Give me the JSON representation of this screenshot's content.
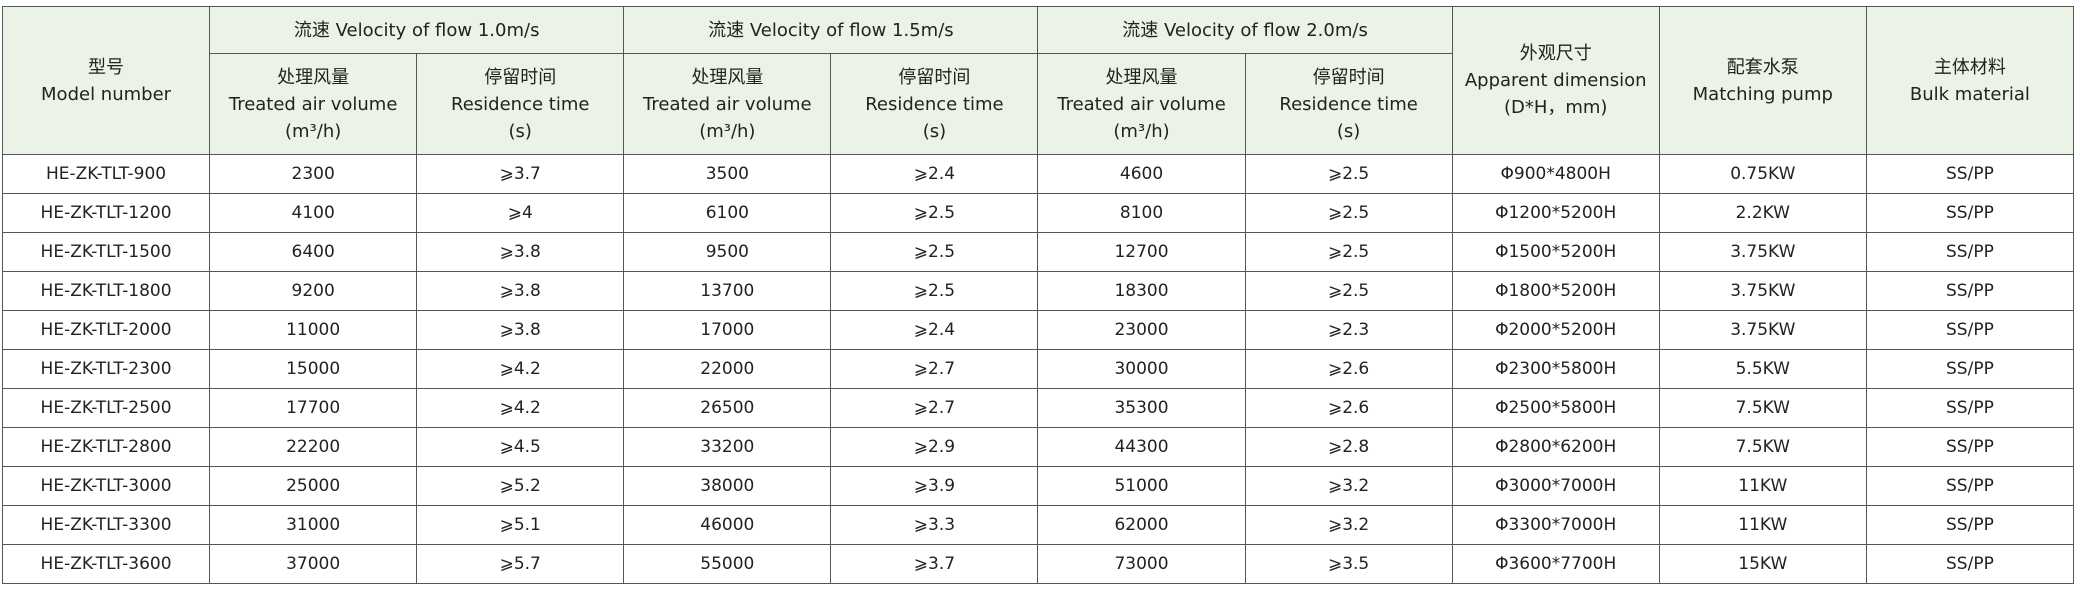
{
  "table": {
    "model_header": [
      "型号",
      "Model number"
    ],
    "velocity_groups": [
      {
        "title": "流速 Velocity of flow 1.0m/s",
        "columns": [
          [
            "处理风量",
            "Treated air volume",
            "(m³/h)"
          ],
          [
            "停留时间",
            "Residence time",
            "(s)"
          ]
        ]
      },
      {
        "title": "流速 Velocity of flow 1.5m/s",
        "columns": [
          [
            "处理风量",
            "Treated air volume",
            "(m³/h)"
          ],
          [
            "停留时间",
            "Residence time",
            "(s)"
          ]
        ]
      },
      {
        "title": "流速 Velocity of flow 2.0m/s",
        "columns": [
          [
            "处理风量",
            "Treated air volume",
            "(m³/h)"
          ],
          [
            "停留时间",
            "Residence time",
            "(s)"
          ]
        ]
      }
    ],
    "other_headers": [
      [
        "外观尺寸",
        "Apparent dimension",
        "(D*H，mm)"
      ],
      [
        "配套水泵",
        "Matching pump"
      ],
      [
        "主体材料",
        "Bulk material"
      ]
    ],
    "rows": [
      [
        "HE-ZK-TLT-900",
        2300,
        "⩾3.7",
        3500,
        "⩾2.4",
        4600,
        "⩾2.5",
        "Φ900*4800H",
        "0.75KW",
        "SS/PP"
      ],
      [
        "HE-ZK-TLT-1200",
        4100,
        "⩾4",
        6100,
        "⩾2.5",
        8100,
        "⩾2.5",
        "Φ1200*5200H",
        "2.2KW",
        "SS/PP"
      ],
      [
        "HE-ZK-TLT-1500",
        6400,
        "⩾3.8",
        9500,
        "⩾2.5",
        12700,
        "⩾2.5",
        "Φ1500*5200H",
        "3.75KW",
        "SS/PP"
      ],
      [
        "HE-ZK-TLT-1800",
        9200,
        "⩾3.8",
        13700,
        "⩾2.5",
        18300,
        "⩾2.5",
        "Φ1800*5200H",
        "3.75KW",
        "SS/PP"
      ],
      [
        "HE-ZK-TLT-2000",
        11000,
        "⩾3.8",
        17000,
        "⩾2.4",
        23000,
        "⩾2.3",
        "Φ2000*5200H",
        "3.75KW",
        "SS/PP"
      ],
      [
        "HE-ZK-TLT-2300",
        15000,
        "⩾4.2",
        22000,
        "⩾2.7",
        30000,
        "⩾2.6",
        "Φ2300*5800H",
        "5.5KW",
        "SS/PP"
      ],
      [
        "HE-ZK-TLT-2500",
        17700,
        "⩾4.2",
        26500,
        "⩾2.7",
        35300,
        "⩾2.6",
        "Φ2500*5800H",
        "7.5KW",
        "SS/PP"
      ],
      [
        "HE-ZK-TLT-2800",
        22200,
        "⩾4.5",
        33200,
        "⩾2.9",
        44300,
        "⩾2.8",
        "Φ2800*6200H",
        "7.5KW",
        "SS/PP"
      ],
      [
        "HE-ZK-TLT-3000",
        25000,
        "⩾5.2",
        38000,
        "⩾3.9",
        51000,
        "⩾3.2",
        "Φ3000*7000H",
        "11KW",
        "SS/PP"
      ],
      [
        "HE-ZK-TLT-3300",
        31000,
        "⩾5.1",
        46000,
        "⩾3.3",
        62000,
        "⩾3.2",
        "Φ3300*7000H",
        "11KW",
        "SS/PP"
      ],
      [
        "HE-ZK-TLT-3600",
        37000,
        "⩾5.7",
        55000,
        "⩾3.7",
        73000,
        "⩾3.5",
        "Φ3600*7700H",
        "15KW",
        "SS/PP"
      ]
    ]
  }
}
